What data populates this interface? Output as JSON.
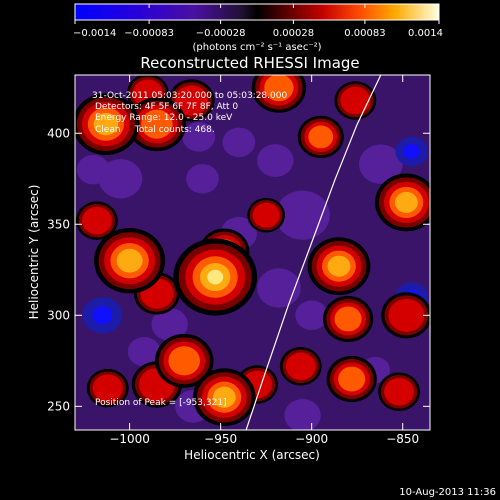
{
  "chart_data": {
    "type": "heatmap",
    "title": "Reconstructed RHESSI Image",
    "xlabel": "Heliocentric X (arcsec)",
    "ylabel": "Heliocentric Y (arcsec)",
    "xlim": [
      -1030,
      -835
    ],
    "ylim": [
      237,
      432
    ],
    "x_ticks": [
      -1000,
      -950,
      -900,
      -850
    ],
    "x_tick_labels": [
      "−1000",
      "−950",
      "−900",
      "−850"
    ],
    "y_ticks": [
      250,
      300,
      350,
      400
    ],
    "y_tick_labels": [
      "250",
      "300",
      "350",
      "400"
    ],
    "colorbar": {
      "min": -0.0014,
      "max": 0.0014,
      "ticks": [
        -0.0014,
        -0.00083,
        -0.00028,
        0.00028,
        0.00083,
        0.0014
      ],
      "tick_labels": [
        "−0.0014",
        "−0.00083",
        "−0.00028",
        "0.00028",
        "0.00083",
        "0.0014"
      ],
      "unit_label": "(photons cm⁻² s⁻¹ asec⁻²)"
    },
    "annotations": [
      "31-Oct-2011 05:03:20.000 to 05:03:28.000",
      "Detectors: 4F 5F 6F 7F 8F, Att 0",
      "Energy Range: 12.0 - 25.0 keV",
      "Clean     Total counts: 468."
    ],
    "peak_label": "Position of Peak = [-953,321]",
    "peak_position": [
      -953,
      321
    ],
    "limb_curve": {
      "x": [
        -936,
        -925,
        -913,
        -900,
        -887,
        -875,
        -862
      ],
      "y": [
        237,
        270,
        305,
        340,
        375,
        405,
        432
      ]
    },
    "blobs": [
      {
        "x": -953,
        "y": 321,
        "r": 20,
        "a": 1.0
      },
      {
        "x": -948,
        "y": 335,
        "r": 12,
        "a": 0.7
      },
      {
        "x": -1000,
        "y": 330,
        "r": 17,
        "a": 0.75
      },
      {
        "x": -985,
        "y": 312,
        "r": 11,
        "a": 0.55
      },
      {
        "x": -1013,
        "y": 405,
        "r": 16,
        "a": 0.75
      },
      {
        "x": -985,
        "y": 405,
        "r": 14,
        "a": 0.7
      },
      {
        "x": -990,
        "y": 422,
        "r": 10,
        "a": 0.5
      },
      {
        "x": -966,
        "y": 418,
        "r": 11,
        "a": 0.55
      },
      {
        "x": -970,
        "y": 275,
        "r": 14,
        "a": 0.65
      },
      {
        "x": -985,
        "y": 262,
        "r": 12,
        "a": 0.55
      },
      {
        "x": -948,
        "y": 255,
        "r": 15,
        "a": 0.9
      },
      {
        "x": -930,
        "y": 262,
        "r": 10,
        "a": 0.55
      },
      {
        "x": -918,
        "y": 425,
        "r": 13,
        "a": 0.6
      },
      {
        "x": -895,
        "y": 398,
        "r": 11,
        "a": 0.65
      },
      {
        "x": -876,
        "y": 418,
        "r": 10,
        "a": 0.5
      },
      {
        "x": -885,
        "y": 327,
        "r": 15,
        "a": 0.85
      },
      {
        "x": -880,
        "y": 298,
        "r": 12,
        "a": 0.7
      },
      {
        "x": -878,
        "y": 265,
        "r": 12,
        "a": 0.6
      },
      {
        "x": -906,
        "y": 272,
        "r": 10,
        "a": 0.55
      },
      {
        "x": -848,
        "y": 362,
        "r": 15,
        "a": 0.75
      },
      {
        "x": -848,
        "y": 300,
        "r": 12,
        "a": 0.55
      },
      {
        "x": -852,
        "y": 258,
        "r": 10,
        "a": 0.45
      },
      {
        "x": -925,
        "y": 355,
        "r": 9,
        "a": 0.45
      },
      {
        "x": -1012,
        "y": 260,
        "r": 10,
        "a": 0.5
      },
      {
        "x": -1018,
        "y": 352,
        "r": 10,
        "a": 0.5
      },
      {
        "x": -960,
        "y": 375,
        "r": 9,
        "a": -0.55
      },
      {
        "x": -1005,
        "y": 375,
        "r": 12,
        "a": -0.6
      },
      {
        "x": -1020,
        "y": 380,
        "r": 9,
        "a": -0.55
      },
      {
        "x": -978,
        "y": 295,
        "r": 10,
        "a": -0.55
      },
      {
        "x": -992,
        "y": 280,
        "r": 9,
        "a": -0.45
      },
      {
        "x": -962,
        "y": 398,
        "r": 9,
        "a": -0.5
      },
      {
        "x": -1015,
        "y": 300,
        "r": 11,
        "a": -0.85
      },
      {
        "x": -905,
        "y": 355,
        "r": 15,
        "a": -0.6
      },
      {
        "x": -918,
        "y": 315,
        "r": 12,
        "a": -0.65
      },
      {
        "x": -900,
        "y": 300,
        "r": 9,
        "a": -0.45
      },
      {
        "x": -920,
        "y": 385,
        "r": 10,
        "a": -0.55
      },
      {
        "x": -940,
        "y": 345,
        "r": 10,
        "a": -0.45
      },
      {
        "x": -940,
        "y": 395,
        "r": 9,
        "a": -0.4
      },
      {
        "x": -862,
        "y": 383,
        "r": 12,
        "a": -0.6
      },
      {
        "x": -845,
        "y": 390,
        "r": 9,
        "a": -0.85
      },
      {
        "x": -845,
        "y": 310,
        "r": 9,
        "a": -0.8
      },
      {
        "x": -865,
        "y": 270,
        "r": 8,
        "a": -0.5
      },
      {
        "x": -965,
        "y": 250,
        "r": 10,
        "a": -0.45
      },
      {
        "x": -905,
        "y": 245,
        "r": 10,
        "a": -0.45
      }
    ]
  },
  "footer": {
    "date": "10-Aug-2013 11:36"
  }
}
